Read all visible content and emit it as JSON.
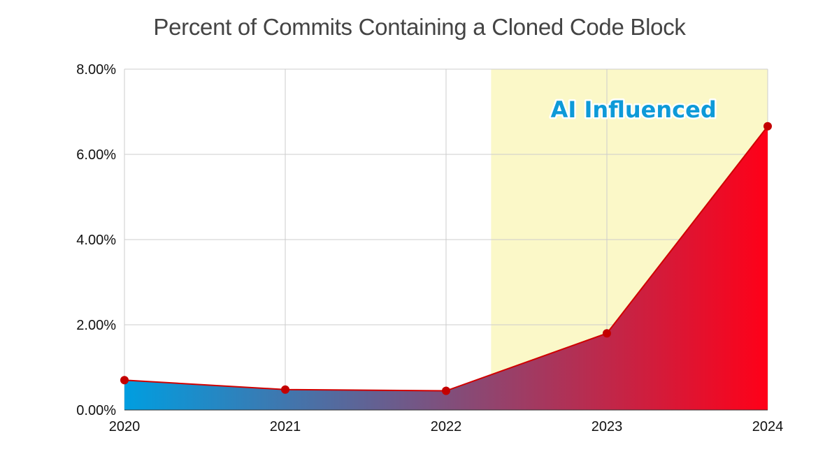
{
  "chart_data": {
    "type": "area",
    "title": "Percent of Commits Containing a Cloned Code Block",
    "xlabel": "",
    "ylabel": "",
    "x": [
      "2020",
      "2021",
      "2022",
      "2023",
      "2024"
    ],
    "series": [
      {
        "values": [
          0.7,
          0.48,
          0.45,
          1.8,
          6.66
        ]
      }
    ],
    "ylim": [
      0,
      8
    ],
    "y_ticks": [
      "0.00%",
      "2.00%",
      "4.00%",
      "6.00%",
      "8.00%"
    ],
    "y_tick_values": [
      0,
      2,
      4,
      6,
      8
    ],
    "grid": true,
    "highlight_region": {
      "x_start": 2022.28,
      "x_end": 2024,
      "label": "AI Influenced",
      "color": "#fbf8c8"
    },
    "colors": {
      "fill_start": "#009ee0",
      "fill_end": "#ff0018",
      "line": "#d00000",
      "marker": "#c40000",
      "annotation": "#0e9ad8",
      "grid": "#cccccc"
    }
  }
}
